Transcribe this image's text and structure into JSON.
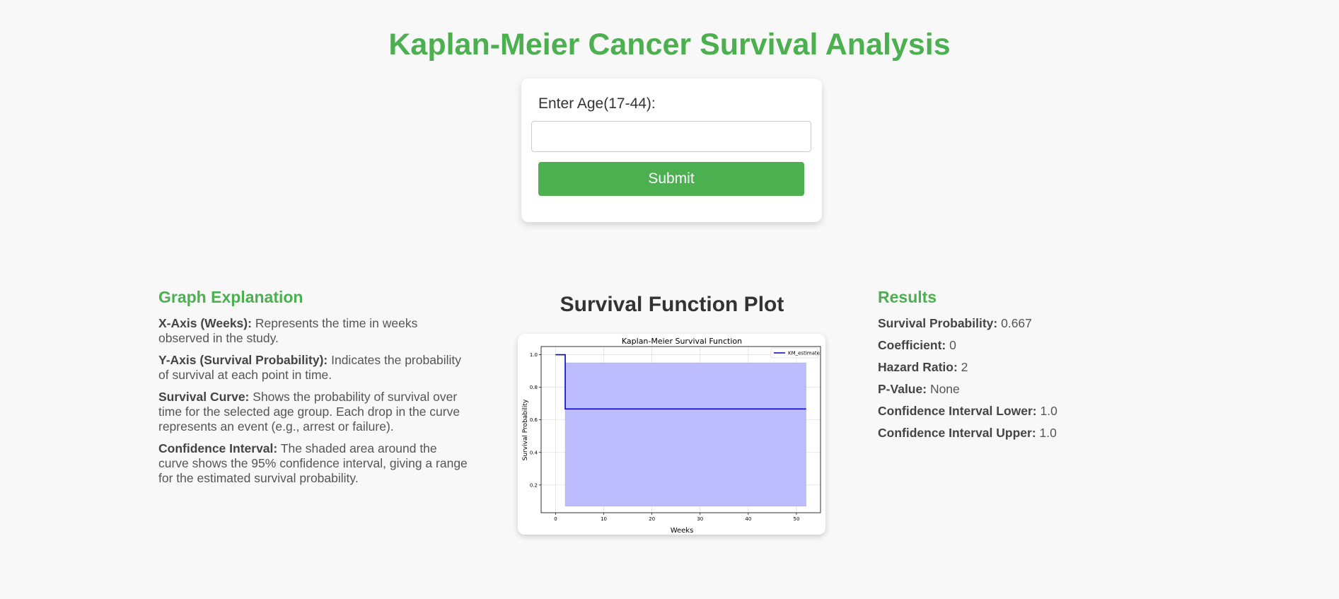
{
  "header": {
    "title": "Kaplan-Meier Cancer Survival Analysis"
  },
  "form": {
    "label": "Enter Age(17-44):",
    "input_value": "",
    "input_placeholder": "",
    "submit_label": "Submit"
  },
  "explanation": {
    "heading": "Graph Explanation",
    "items": [
      {
        "term": "X-Axis (Weeks):",
        "text": "Represents the time in weeks observed in the study."
      },
      {
        "term": "Y-Axis (Survival Probability):",
        "text": "Indicates the probability of survival at each point in time."
      },
      {
        "term": "Survival Curve:",
        "text": "Shows the probability of survival over time for the selected age group. Each drop in the curve represents an event (e.g., arrest or failure)."
      },
      {
        "term": "Confidence Interval:",
        "text": "The shaded area around the curve shows the 95% confidence interval, giving a range for the estimated survival probability."
      }
    ]
  },
  "plot": {
    "heading": "Survival Function Plot"
  },
  "results": {
    "heading": "Results",
    "items": [
      {
        "label": "Survival Probability:",
        "value": "0.667"
      },
      {
        "label": "Coefficient:",
        "value": "0"
      },
      {
        "label": "Hazard Ratio:",
        "value": "2"
      },
      {
        "label": "P-Value:",
        "value": "None"
      },
      {
        "label": "Confidence Interval Lower:",
        "value": "1.0"
      },
      {
        "label": "Confidence Interval Upper:",
        "value": "1.0"
      }
    ]
  },
  "colors": {
    "accent": "#4caf50",
    "curve": "#0000cc",
    "ci_fill": "#b9b8ff"
  },
  "chart_data": {
    "type": "line",
    "title": "Kaplan-Meier Survival Function",
    "xlabel": "Weeks",
    "ylabel": "Survival Probability",
    "xlim": [
      -3,
      55
    ],
    "ylim": [
      0.03,
      1.05
    ],
    "x_ticks": [
      0,
      10,
      20,
      30,
      40,
      50
    ],
    "y_ticks": [
      0.2,
      0.4,
      0.6,
      0.8,
      1.0
    ],
    "x_tick_labels": [
      "0",
      "10",
      "20",
      "30",
      "40",
      "50"
    ],
    "y_tick_labels": [
      "0.2",
      "0.4",
      "0.6",
      "0.8",
      "1.0"
    ],
    "grid": true,
    "legend_position": "top-right",
    "series": [
      {
        "name": "KM_estimate",
        "step": true,
        "x": [
          0,
          2,
          52
        ],
        "y": [
          1.0,
          0.667,
          0.667
        ]
      }
    ],
    "confidence_interval": {
      "x": [
        2,
        52
      ],
      "lower": [
        0.07,
        0.07
      ],
      "upper": [
        0.95,
        0.95
      ]
    }
  }
}
